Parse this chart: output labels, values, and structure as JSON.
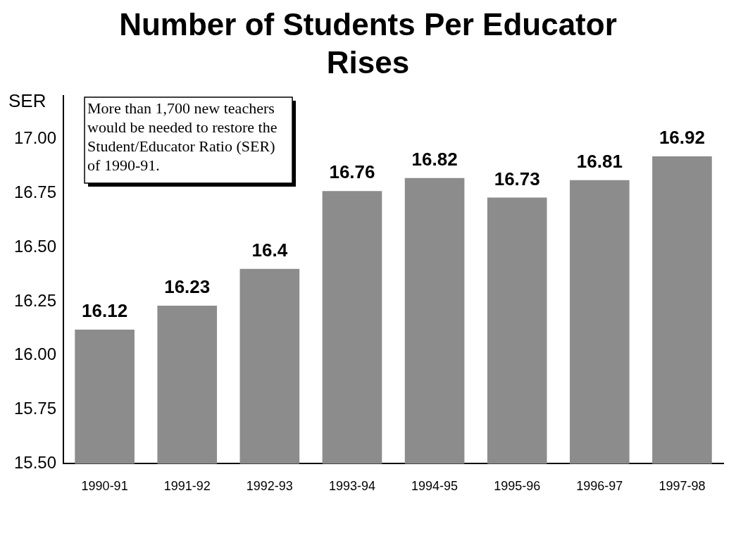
{
  "chart_data": {
    "type": "bar",
    "title": "Number of Students Per Educator Rises",
    "ylabel": "SER",
    "categories": [
      "1990-91",
      "1991-92",
      "1992-93",
      "1993-94",
      "1994-95",
      "1995-96",
      "1996-97",
      "1997-98"
    ],
    "values": [
      16.12,
      16.23,
      16.4,
      16.76,
      16.82,
      16.73,
      16.81,
      16.92
    ],
    "color": "#8c8c8c",
    "ylim": [
      15.5,
      17.2
    ],
    "yticks": [
      {
        "value": 15.5,
        "label": "15.50"
      },
      {
        "value": 15.75,
        "label": "15.75"
      },
      {
        "value": 16,
        "label": "16.00"
      },
      {
        "value": 16.25,
        "label": "16.25"
      },
      {
        "value": 16.5,
        "label": "16.50"
      },
      {
        "value": 16.75,
        "label": "16.75"
      },
      {
        "value": 17,
        "label": "17.00"
      }
    ],
    "data_labels": true,
    "annotations": [
      "More than 1,700 new teachers would be needed to restore the Student/Educator Ratio (SER) of 1990-91."
    ]
  }
}
